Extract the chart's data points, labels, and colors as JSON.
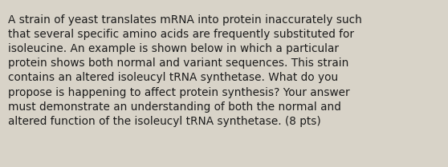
{
  "background_color": "#d8d3c8",
  "text_color": "#1c1c1c",
  "text": "A strain of yeast translates mRNA into protein inaccurately such\nthat several specific amino acids are frequently substituted for\nisoleucine. An example is shown below in which a particular\nprotein shows both normal and variant sequences. This strain\ncontains an altered isoleucyl tRNA synthetase. What do you\npropose is happening to affect protein synthesis? Your answer\nmust demonstrate an understanding of both the normal and\naltered function of the isoleucyl tRNA synthetase. (8 pts)",
  "font_size": 9.8,
  "fig_width": 5.58,
  "fig_height": 2.09,
  "dpi": 100
}
